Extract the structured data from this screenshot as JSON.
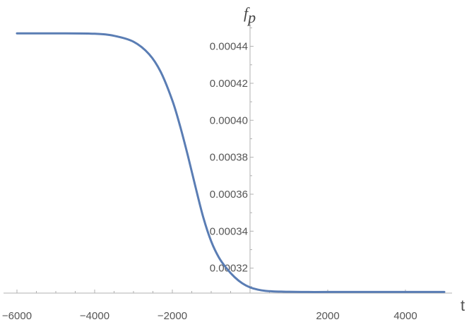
{
  "chart_data": {
    "type": "line",
    "title": "",
    "xlabel": "t",
    "ylabel_main": "f",
    "ylabel_sub": "p",
    "xlim": [
      -6000,
      5000
    ],
    "ylim": [
      0.0003065,
      0.000462
    ],
    "x_major_ticks": [
      -6000,
      -4000,
      -2000,
      2000,
      4000
    ],
    "x_tick_labels": [
      "−6000",
      "−4000",
      "−2000",
      "2000",
      "4000"
    ],
    "y_major_ticks": [
      0.00032,
      0.00034,
      0.00036,
      0.00038,
      0.0004,
      0.00042,
      0.00044
    ],
    "y_tick_labels": [
      "0.00032",
      "0.00034",
      "0.00036",
      "0.00038",
      "0.00040",
      "0.00042",
      "0.00044"
    ],
    "grid": false,
    "series": [
      {
        "color": "#5a7db4",
        "x": [
          -6000,
          -5000,
          -4000,
          -3500,
          -3000,
          -2600,
          -2300,
          -2000,
          -1800,
          -1600,
          -1400,
          -1200,
          -1000,
          -800,
          -600,
          -400,
          -200,
          0,
          200,
          400,
          600,
          800,
          1000,
          1500,
          2000,
          3000,
          4000,
          5000
        ],
        "y": [
          0.000447,
          0.000447,
          0.0004468,
          0.0004457,
          0.0004425,
          0.0004358,
          0.0004262,
          0.0004107,
          0.0003968,
          0.0003808,
          0.0003636,
          0.0003472,
          0.0003345,
          0.0003257,
          0.0003198,
          0.0003152,
          0.0003118,
          0.0003096,
          0.0003084,
          0.0003077,
          0.0003074,
          0.0003073,
          0.0003072,
          0.0003071,
          0.0003071,
          0.0003071,
          0.0003071,
          0.0003071
        ]
      }
    ]
  }
}
